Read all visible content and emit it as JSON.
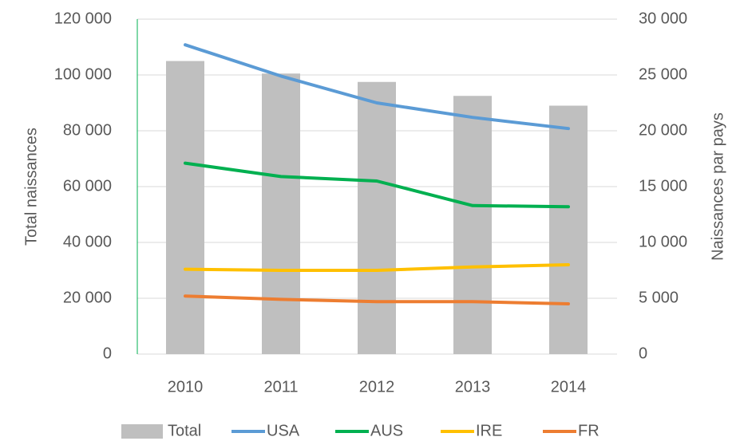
{
  "chart_data": {
    "type": "bar-line",
    "categories": [
      "2010",
      "2011",
      "2012",
      "2013",
      "2014"
    ],
    "series": [
      {
        "name": "Total",
        "type": "bar",
        "color": "#bfbfbf",
        "values": [
          105000,
          100500,
          97500,
          92500,
          89000
        ]
      },
      {
        "name": "USA",
        "type": "line",
        "axis": "y2",
        "color": "#5b9bd5",
        "values": [
          27700,
          24900,
          22500,
          21200,
          20200
        ]
      },
      {
        "name": "AUS",
        "type": "line",
        "axis": "y2",
        "color": "#00b050",
        "values": [
          17100,
          15900,
          15500,
          13300,
          13200
        ]
      },
      {
        "name": "IRE",
        "type": "line",
        "axis": "y2",
        "color": "#ffc000",
        "values": [
          7600,
          7500,
          7500,
          7800,
          8000
        ]
      },
      {
        "name": "FR",
        "type": "line",
        "axis": "y2",
        "color": "#ed7d31",
        "values": [
          5200,
          4900,
          4700,
          4700,
          4500
        ]
      }
    ],
    "ylabel": "Total naissances",
    "y2label": "Naissances par pays",
    "ylim": [
      0,
      120000
    ],
    "yticks": [
      0,
      {
        "value": 20000,
        "label": "20 000"
      },
      {
        "value": 40000,
        "label": "40 000"
      },
      {
        "value": 60000,
        "label": "60 000"
      },
      {
        "value": 80000,
        "label": "80 000"
      },
      {
        "value": 100000,
        "label": "100 000"
      },
      {
        "value": 120000,
        "label": "120 000"
      }
    ],
    "y2lim": [
      0,
      30000
    ],
    "y2ticks": [
      0,
      {
        "value": 5000,
        "label": "5 000"
      },
      {
        "value": 10000,
        "label": "10 000"
      },
      {
        "value": 15000,
        "label": "15 000"
      },
      {
        "value": 20000,
        "label": "20 000"
      },
      {
        "value": 25000,
        "label": "25 000"
      },
      {
        "value": 30000,
        "label": "30 000"
      }
    ],
    "grid": true,
    "legend": "bottom"
  }
}
